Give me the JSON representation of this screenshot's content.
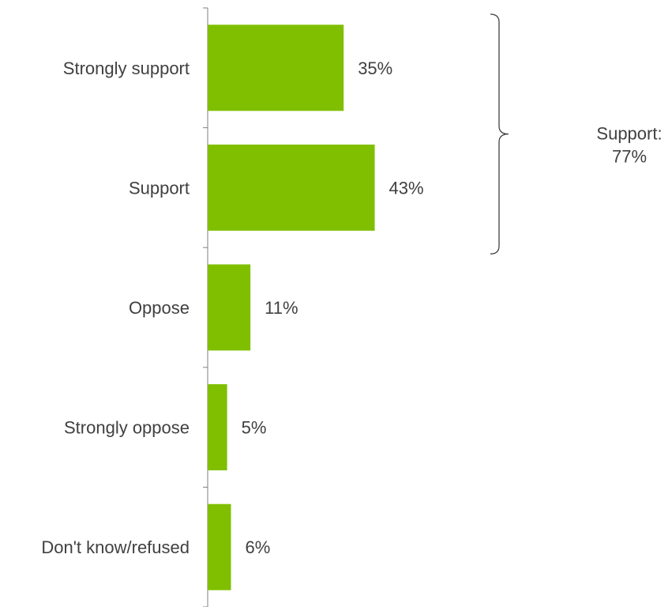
{
  "chart_data": {
    "type": "bar",
    "orientation": "horizontal",
    "categories": [
      "Strongly support",
      "Support",
      "Oppose",
      "Strongly oppose",
      "Don't know/refused"
    ],
    "values": [
      35,
      43,
      11,
      5,
      6
    ],
    "value_labels": [
      "35%",
      "43%",
      "11%",
      "5%",
      "6%"
    ],
    "unit": "%",
    "bar_color": "#7fbf00",
    "axis_color": "#808080",
    "text_color": "#404040",
    "grid": false,
    "legend": "none",
    "annotation": {
      "type": "bracket",
      "spans_categories": [
        "Strongly support",
        "Support"
      ],
      "label_lines": [
        "Support:",
        "77%"
      ]
    }
  }
}
